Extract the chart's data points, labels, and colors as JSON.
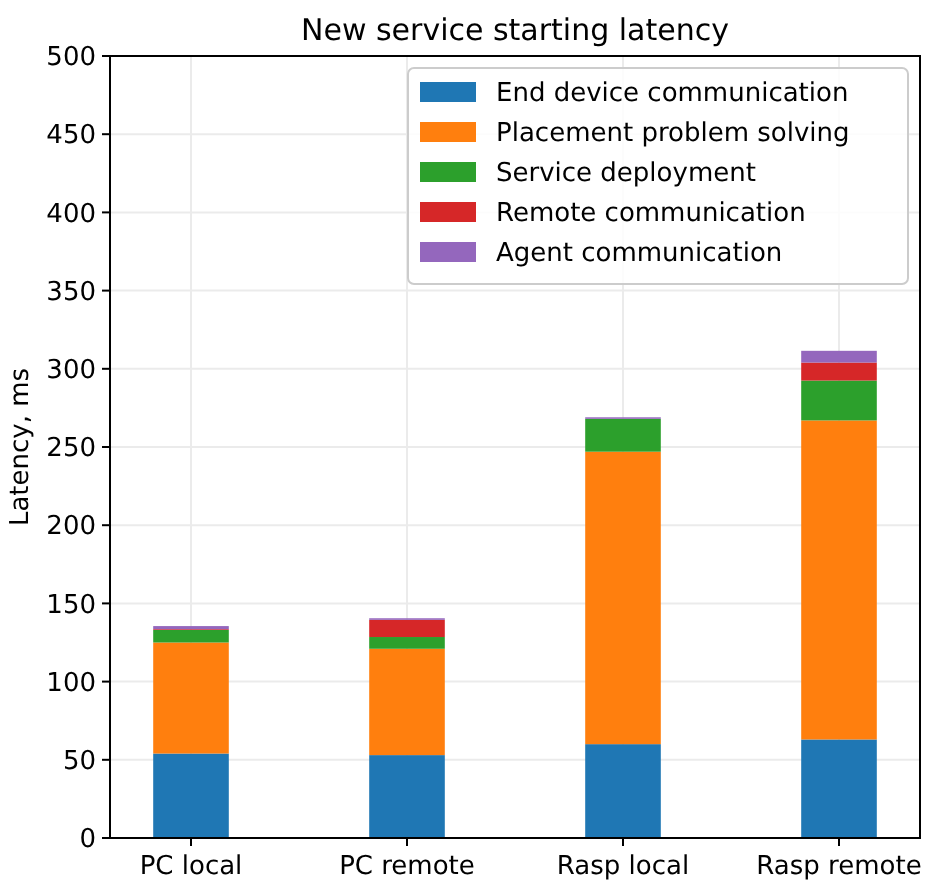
{
  "chart_data": {
    "type": "bar",
    "title": "New service starting latency",
    "ylabel": "Latency, ms",
    "categories": [
      "PC local",
      "PC remote",
      "Rasp local",
      "Rasp remote"
    ],
    "stacked": true,
    "series": [
      {
        "name": "End device communication",
        "color": "#1f77b4",
        "values": [
          54,
          53,
          60,
          63
        ]
      },
      {
        "name": "Placement problem solving",
        "color": "#ff7f0e",
        "values": [
          71,
          68,
          187,
          204
        ]
      },
      {
        "name": "Service deployment",
        "color": "#2ca02c",
        "values": [
          8,
          7.5,
          21,
          25.5
        ]
      },
      {
        "name": "Remote communication",
        "color": "#d62728",
        "values": [
          0.5,
          11,
          0,
          11.5
        ]
      },
      {
        "name": "Agent communication",
        "color": "#9467bd",
        "values": [
          2,
          1,
          1,
          7.5
        ]
      }
    ],
    "ylim": [
      0,
      500
    ],
    "yticks": [
      0,
      50,
      100,
      150,
      200,
      250,
      300,
      350,
      400,
      450,
      500
    ],
    "grid": true,
    "legend": "top right"
  }
}
